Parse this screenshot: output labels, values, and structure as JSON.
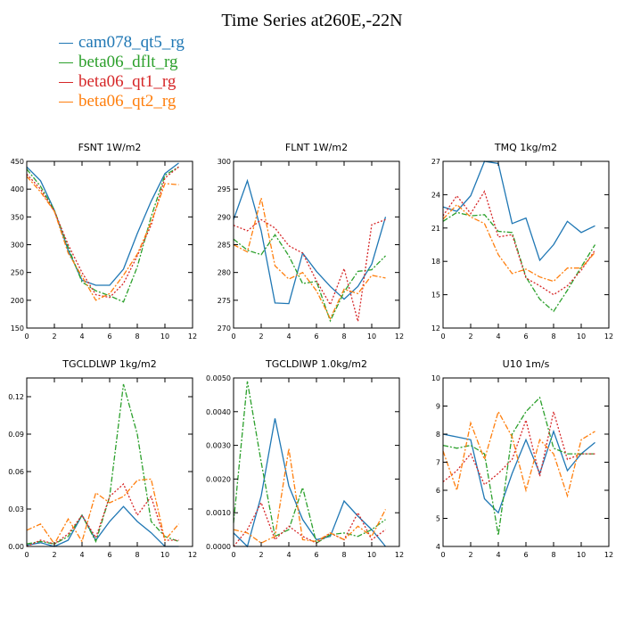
{
  "figure": {
    "title": "Time Series at260E,-22N",
    "legend": [
      {
        "label": "cam078_qt5_rg",
        "color": "#1f77b4"
      },
      {
        "label": "beta06_dflt_rg",
        "color": "#2ca02c"
      },
      {
        "label": "beta06_qt1_rg",
        "color": "#d62728"
      },
      {
        "label": "beta06_qt2_rg",
        "color": "#ff7f0e"
      }
    ]
  },
  "chart_data": [
    {
      "type": "line",
      "title": "FSNT   1W/m2",
      "xlim": [
        0,
        12
      ],
      "ylim": [
        150,
        450
      ],
      "xticks": [
        0,
        2,
        4,
        6,
        8,
        10,
        12
      ],
      "yticks": [
        150,
        200,
        250,
        300,
        350,
        400,
        450
      ],
      "ytick_labels": [
        "150",
        "200",
        "250",
        "300",
        "350",
        "400",
        "450"
      ],
      "x": [
        0,
        1,
        2,
        3,
        4,
        5,
        6,
        7,
        8,
        9,
        10,
        11
      ],
      "series": [
        {
          "name": "cam078_qt5_rg",
          "color": "#1f77b4",
          "style": "solid",
          "values": [
            440,
            415,
            362,
            290,
            236,
            227,
            227,
            256,
            320,
            378,
            428,
            447
          ]
        },
        {
          "name": "beta06_dflt_rg",
          "color": "#2ca02c",
          "style": "dashdot",
          "values": [
            436,
            405,
            362,
            295,
            233,
            217,
            208,
            197,
            260,
            350,
            425,
            440
          ]
        },
        {
          "name": "beta06_qt1_rg",
          "color": "#d62728",
          "style": "dotted",
          "values": [
            427,
            400,
            360,
            300,
            250,
            210,
            205,
            230,
            280,
            335,
            420,
            440
          ]
        },
        {
          "name": "beta06_qt2_rg",
          "color": "#ff7f0e",
          "style": "dashdot",
          "values": [
            423,
            395,
            360,
            285,
            243,
            200,
            212,
            245,
            283,
            340,
            410,
            408
          ]
        }
      ]
    },
    {
      "type": "line",
      "title": "FLNT   1W/m2",
      "xlim": [
        0,
        12
      ],
      "ylim": [
        270,
        300
      ],
      "xticks": [
        0,
        2,
        4,
        6,
        8,
        10,
        12
      ],
      "yticks": [
        270,
        275,
        280,
        285,
        290,
        295,
        300
      ],
      "ytick_labels": [
        "270",
        "275",
        "280",
        "285",
        "290",
        "295",
        "300"
      ],
      "x": [
        0,
        1,
        2,
        3,
        4,
        5,
        6,
        7,
        8,
        9,
        10,
        11
      ],
      "series": [
        {
          "name": "cam078_qt5_rg",
          "color": "#1f77b4",
          "style": "solid",
          "values": [
            289.5,
            296.5,
            287.5,
            274.5,
            274.4,
            283.5,
            280.2,
            277.5,
            275.2,
            277.5,
            281.5,
            290.0
          ]
        },
        {
          "name": "beta06_dflt_rg",
          "color": "#2ca02c",
          "style": "dashdot",
          "values": [
            286.0,
            284.0,
            283.2,
            286.8,
            283.0,
            278.0,
            278.4,
            271.3,
            276.5,
            280.2,
            280.5,
            283.0
          ]
        },
        {
          "name": "beta06_qt1_rg",
          "color": "#d62728",
          "style": "dotted",
          "values": [
            288.5,
            287.5,
            289.5,
            288.0,
            284.8,
            283.5,
            278.5,
            274.2,
            280.7,
            271.2,
            288.6,
            289.5
          ]
        },
        {
          "name": "beta06_qt2_rg",
          "color": "#ff7f0e",
          "style": "dashdot",
          "values": [
            285.0,
            283.7,
            293.4,
            281.2,
            278.8,
            280.0,
            276.7,
            271.7,
            277.0,
            276.2,
            279.5,
            279.0
          ]
        }
      ]
    },
    {
      "type": "line",
      "title": "TMQ   1kg/m2",
      "xlim": [
        0,
        12
      ],
      "ylim": [
        12,
        27
      ],
      "xticks": [
        0,
        2,
        4,
        6,
        8,
        10,
        12
      ],
      "yticks": [
        12,
        15,
        18,
        21,
        24,
        27
      ],
      "ytick_labels": [
        "12",
        "15",
        "18",
        "21",
        "24",
        "27"
      ],
      "x": [
        0,
        1,
        2,
        3,
        4,
        5,
        6,
        7,
        8,
        9,
        10,
        11
      ],
      "series": [
        {
          "name": "cam078_qt5_rg",
          "color": "#1f77b4",
          "style": "solid",
          "values": [
            22.9,
            22.5,
            23.9,
            27.0,
            26.8,
            21.4,
            21.9,
            18.1,
            19.5,
            21.6,
            20.6,
            21.2
          ]
        },
        {
          "name": "beta06_dflt_rg",
          "color": "#2ca02c",
          "style": "dashdot",
          "values": [
            21.6,
            22.4,
            22.1,
            22.2,
            20.7,
            20.6,
            16.6,
            14.6,
            13.5,
            15.4,
            17.5,
            19.5
          ]
        },
        {
          "name": "beta06_qt1_rg",
          "color": "#d62728",
          "style": "dotted",
          "values": [
            22.1,
            23.9,
            22.3,
            24.3,
            20.2,
            20.4,
            16.5,
            15.8,
            15.0,
            15.8,
            17.2,
            19.0
          ]
        },
        {
          "name": "beta06_qt2_rg",
          "color": "#ff7f0e",
          "style": "dashdot",
          "values": [
            21.8,
            23.1,
            22.0,
            21.4,
            18.6,
            16.9,
            17.3,
            16.6,
            16.2,
            17.4,
            17.4,
            18.8
          ]
        }
      ]
    },
    {
      "type": "line",
      "title": "TGCLDLWP   1kg/m2",
      "xlim": [
        0,
        12
      ],
      "ylim": [
        0,
        0.135
      ],
      "xticks": [
        0,
        2,
        4,
        6,
        8,
        10,
        12
      ],
      "yticks": [
        0,
        0.03,
        0.06,
        0.09,
        0.12
      ],
      "ytick_labels": [
        "0.00",
        "0.03",
        "0.06",
        "0.09",
        "0.12"
      ],
      "x": [
        0,
        1,
        2,
        3,
        4,
        5,
        6,
        7,
        8,
        9,
        10,
        11
      ],
      "series": [
        {
          "name": "cam078_qt5_rg",
          "color": "#1f77b4",
          "style": "solid",
          "values": [
            0.001,
            0.003,
            0.0,
            0.005,
            0.025,
            0.005,
            0.02,
            0.032,
            0.02,
            0.011,
            0.0,
            0.0
          ]
        },
        {
          "name": "beta06_dflt_rg",
          "color": "#2ca02c",
          "style": "dashdot",
          "values": [
            0.002,
            0.004,
            0.002,
            0.008,
            0.025,
            0.004,
            0.04,
            0.13,
            0.09,
            0.02,
            0.008,
            0.004
          ]
        },
        {
          "name": "beta06_qt1_rg",
          "color": "#d62728",
          "style": "dotted",
          "values": [
            0.0,
            0.005,
            0.002,
            0.01,
            0.025,
            0.007,
            0.04,
            0.05,
            0.025,
            0.04,
            0.005,
            0.005
          ]
        },
        {
          "name": "beta06_qt2_rg",
          "color": "#ff7f0e",
          "style": "dashdot",
          "values": [
            0.013,
            0.018,
            0.002,
            0.022,
            0.004,
            0.043,
            0.035,
            0.04,
            0.053,
            0.054,
            0.005,
            0.018
          ]
        }
      ]
    },
    {
      "type": "line",
      "title": "TGCLDIWP   1.0kg/m2",
      "xlim": [
        0,
        12
      ],
      "ylim": [
        0,
        0.005
      ],
      "xticks": [
        0,
        2,
        4,
        6,
        8,
        10,
        12
      ],
      "yticks": [
        0,
        0.001,
        0.002,
        0.003,
        0.004,
        0.005
      ],
      "ytick_labels": [
        "0.0000",
        "0.0010",
        "0.0020",
        "0.0030",
        "0.0040",
        "0.0050"
      ],
      "x": [
        0,
        1,
        2,
        3,
        4,
        5,
        6,
        7,
        8,
        9,
        10,
        11
      ],
      "series": [
        {
          "name": "cam078_qt5_rg",
          "color": "#1f77b4",
          "style": "solid",
          "values": [
            0.0004,
            0.0,
            0.0015,
            0.0038,
            0.0018,
            0.0008,
            0.0002,
            0.0003,
            0.00135,
            0.0009,
            0.0005,
            0.0
          ]
        },
        {
          "name": "beta06_dflt_rg",
          "color": "#2ca02c",
          "style": "dashdot",
          "values": [
            0.0007,
            0.0049,
            0.0025,
            0.0003,
            0.0005,
            0.00175,
            0.0001,
            0.00035,
            0.0004,
            0.0003,
            0.0005,
            0.0008
          ]
        },
        {
          "name": "beta06_qt1_rg",
          "color": "#d62728",
          "style": "dotted",
          "values": [
            0.0,
            0.0005,
            0.0013,
            0.0002,
            0.0006,
            0.0003,
            0.0001,
            0.0004,
            0.0002,
            0.001,
            0.0002,
            0.0005
          ]
        },
        {
          "name": "beta06_qt2_rg",
          "color": "#ff7f0e",
          "style": "dashdot",
          "values": [
            0.0005,
            0.0004,
            0.0001,
            0.0003,
            0.0029,
            0.0002,
            0.00015,
            0.0004,
            0.0002,
            0.0006,
            0.0003,
            0.0011
          ]
        }
      ]
    },
    {
      "type": "line",
      "title": "U10   1m/s",
      "xlim": [
        0,
        12
      ],
      "ylim": [
        4,
        10
      ],
      "xticks": [
        0,
        2,
        4,
        6,
        8,
        10,
        12
      ],
      "yticks": [
        4,
        5,
        6,
        7,
        8,
        9,
        10
      ],
      "ytick_labels": [
        "4",
        "5",
        "6",
        "7",
        "8",
        "9",
        "10"
      ],
      "x": [
        0,
        1,
        2,
        3,
        4,
        5,
        6,
        7,
        8,
        9,
        10,
        11
      ],
      "series": [
        {
          "name": "cam078_qt5_rg",
          "color": "#1f77b4",
          "style": "solid",
          "values": [
            8.0,
            7.9,
            7.8,
            5.7,
            5.2,
            6.6,
            7.8,
            6.6,
            8.1,
            6.7,
            7.3,
            7.7
          ]
        },
        {
          "name": "beta06_dflt_rg",
          "color": "#2ca02c",
          "style": "dashdot",
          "values": [
            7.6,
            7.5,
            7.6,
            7.3,
            4.4,
            8.0,
            8.8,
            9.3,
            7.5,
            7.3,
            7.3,
            7.3
          ]
        },
        {
          "name": "beta06_qt1_rg",
          "color": "#d62728",
          "style": "dotted",
          "values": [
            6.3,
            6.7,
            7.3,
            6.2,
            6.6,
            7.1,
            8.5,
            6.5,
            8.8,
            7.1,
            7.3,
            7.3
          ]
        },
        {
          "name": "beta06_qt2_rg",
          "color": "#ff7f0e",
          "style": "dashdot",
          "values": [
            7.4,
            6.0,
            8.4,
            7.1,
            8.8,
            7.9,
            6.0,
            7.8,
            7.3,
            5.8,
            7.8,
            8.1
          ]
        }
      ]
    }
  ]
}
